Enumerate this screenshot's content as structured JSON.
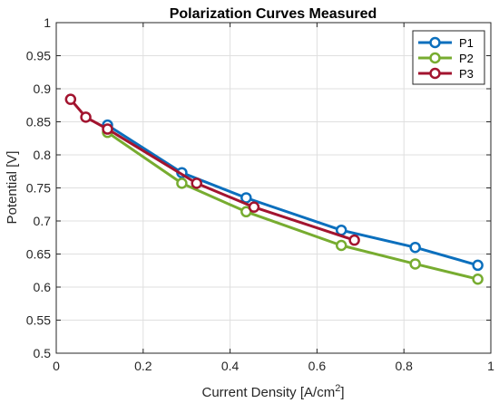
{
  "chart_data": {
    "type": "line",
    "title": "Polarization Curves Measured",
    "xlabel": {
      "main": "Current Density [A/cm",
      "sup": "2",
      "close": "]"
    },
    "ylabel": "Potential [V]",
    "xlim": [
      0,
      1
    ],
    "ylim": [
      0.5,
      1
    ],
    "xticks": [
      "0",
      "0.2",
      "0.4",
      "0.6",
      "0.8",
      "1"
    ],
    "xtick_values": [
      0,
      0.2,
      0.4,
      0.6,
      0.8,
      1
    ],
    "yticks": [
      "0.5",
      "0.55",
      "0.6",
      "0.65",
      "0.7",
      "0.75",
      "0.8",
      "0.85",
      "0.9",
      "0.95",
      "1"
    ],
    "ytick_values": [
      0.5,
      0.55,
      0.6,
      0.65,
      0.7,
      0.75,
      0.8,
      0.85,
      0.9,
      0.95,
      1
    ],
    "grid": true,
    "legend_position": "top-right",
    "series": [
      {
        "name": "P1",
        "color": "#0b6fbd",
        "x": [
          0.118,
          0.289,
          0.437,
          0.656,
          0.826,
          0.97
        ],
        "y": [
          0.845,
          0.773,
          0.735,
          0.686,
          0.66,
          0.633
        ]
      },
      {
        "name": "P2",
        "color": "#77ac30",
        "x": [
          0.118,
          0.289,
          0.437,
          0.656,
          0.826,
          0.97
        ],
        "y": [
          0.834,
          0.757,
          0.714,
          0.663,
          0.635,
          0.612
        ]
      },
      {
        "name": "P3",
        "color": "#a2142f",
        "x": [
          0.033,
          0.068,
          0.118,
          0.323,
          0.455,
          0.686
        ],
        "y": [
          0.884,
          0.857,
          0.839,
          0.757,
          0.721,
          0.671
        ]
      }
    ]
  }
}
